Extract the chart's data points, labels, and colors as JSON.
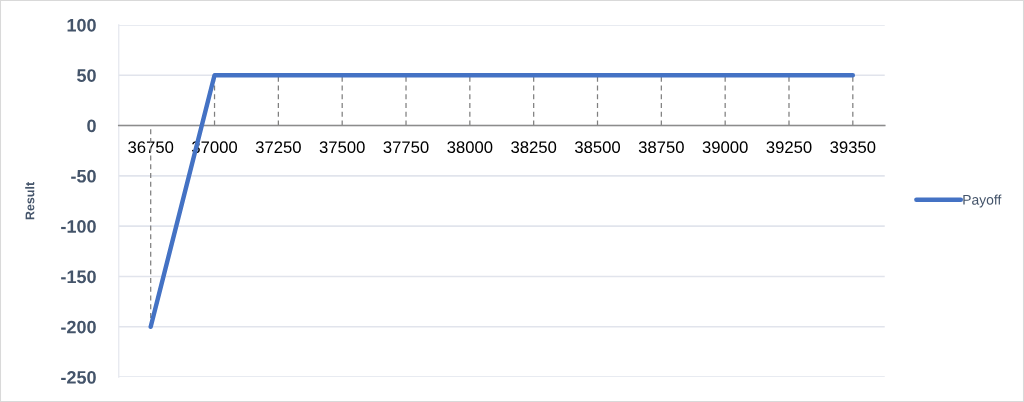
{
  "chart_data": {
    "type": "line",
    "ylabel": "Result",
    "categories": [
      "36750",
      "37000",
      "37250",
      "37500",
      "37750",
      "38000",
      "38250",
      "38500",
      "38750",
      "39000",
      "39250",
      "39350"
    ],
    "series": [
      {
        "name": "Payoff",
        "color": "#4472c4",
        "values": [
          -200,
          50,
          50,
          50,
          50,
          50,
          50,
          50,
          50,
          50,
          50,
          50
        ],
        "errors": [
          [
            -200,
            0
          ],
          [
            0,
            50
          ],
          [
            0,
            50
          ],
          [
            0,
            50
          ],
          [
            0,
            50
          ],
          [
            0,
            50
          ],
          [
            0,
            50
          ],
          [
            0,
            50
          ],
          [
            0,
            50
          ],
          [
            0,
            50
          ],
          [
            0,
            50
          ],
          [
            0,
            50
          ]
        ]
      }
    ],
    "ylim": [
      -250,
      100
    ],
    "yticks": [
      -250,
      -200,
      -150,
      -100,
      -50,
      0,
      50,
      100
    ],
    "grid": "y",
    "legend": "right",
    "line_style": "solid"
  }
}
